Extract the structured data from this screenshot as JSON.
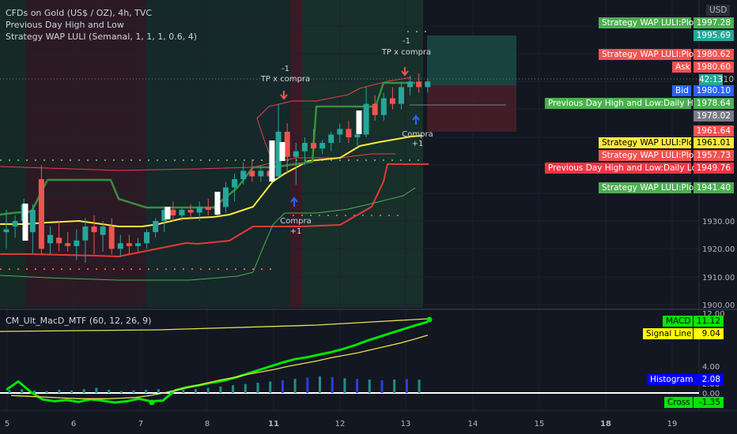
{
  "legend": {
    "symbol": "CFDs on Gold (US$ / OZ), 4h, TVC",
    "study1": "Previous Day High and Low",
    "study2": "Strategy WAP LULI (Semanal, 1, 1, 1, 0.6, 4)",
    "study3": "CM_Ult_MacD_MTF (60, 12, 26, 9)"
  },
  "currency": "USD",
  "labels": [
    {
      "text": "Strategy WAP LULI:Plot",
      "value": "1997.28",
      "bg": "#4caf50",
      "fg": "#ffffff"
    },
    {
      "text": "",
      "value": "1995.69",
      "bg": "#26a69a",
      "fg": "#ffffff"
    },
    {
      "text": "Strategy WAP LULI:Plot",
      "value": "1980.62",
      "bg": "#f05350",
      "fg": "#ffffff"
    },
    {
      "text": "Ask",
      "value": "1980.60",
      "bg": "#f05350",
      "fg": "#ffffff"
    },
    {
      "text": "",
      "value": "1980.10",
      "bg": "",
      "fg": "#b2b5be"
    },
    {
      "text": "",
      "value": "42:13",
      "bg": "#26a69a",
      "fg": "#ffffff"
    },
    {
      "text": "Bid",
      "value": "1980.10",
      "bg": "#2962ff",
      "fg": "#ffffff"
    },
    {
      "text": "Previous Day High and Low:Daily High",
      "value": "1978.64",
      "bg": "#4caf50",
      "fg": "#ffffff"
    },
    {
      "text": "",
      "value": "1978.02",
      "bg": "#787b86",
      "fg": "#ffffff"
    },
    {
      "text": "",
      "value": "1961.64",
      "bg": "#f05350",
      "fg": "#ffffff"
    },
    {
      "text": "Strategy WAP LULI:Plot",
      "value": "1961.01",
      "bg": "#ffeb3b",
      "fg": "#000000"
    },
    {
      "text": "Strategy WAP LULI:Plot",
      "value": "1957.73",
      "bg": "#f05350",
      "fg": "#ffffff"
    },
    {
      "text": "Previous Day High and Low:Daily Low",
      "value": "1949.76",
      "bg": "#f23645",
      "fg": "#ffffff"
    },
    {
      "text": "Strategy WAP LULI:Plot",
      "value": "1941.40",
      "bg": "#4caf50",
      "fg": "#ffffff"
    }
  ],
  "macd_labels": [
    {
      "text": "MACD",
      "value": "11.12",
      "bg": "#00e600",
      "fg": "#000000"
    },
    {
      "text": "Signal Line",
      "value": "9.04",
      "bg": "#ffff00",
      "fg": "#000000"
    },
    {
      "text": "Histogram",
      "value": "2.08",
      "bg": "#0000ff",
      "fg": "#ffffff"
    },
    {
      "text": "Cross",
      "value": "-1.35",
      "bg": "#00e600",
      "fg": "#000000"
    }
  ],
  "annotations": {
    "tp1_label": "TP x compra",
    "tp1_qty": "-1",
    "tp2_label": "TP x compra",
    "tp2_qty": "-1",
    "buy1_label": "Compra",
    "buy1_qty": "+1",
    "buy2_label": "Compra",
    "buy2_qty": "+1"
  },
  "chart_data": {
    "type": "candlestick",
    "title": "CFDs on Gold (US$ / OZ), 4h, TVC",
    "price_axis": {
      "ticks": [
        "1900.00",
        "1910.00",
        "1920.00",
        "1930.00"
      ],
      "ylim": [
        1898,
        2002
      ]
    },
    "time_axis": {
      "ticks": [
        "5",
        "6",
        "7",
        "8",
        "11",
        "12",
        "13",
        "14",
        "15",
        "18",
        "19"
      ]
    },
    "candles": [
      [
        1926,
        1934,
        1920,
        1927
      ],
      [
        1928,
        1932,
        1924,
        1930
      ],
      [
        1930,
        1938,
        1926,
        1936
      ],
      [
        1926,
        1936,
        1918,
        1934
      ],
      [
        1945,
        1950,
        1918,
        1920
      ],
      [
        1922,
        1928,
        1918,
        1925
      ],
      [
        1924,
        1930,
        1919,
        1922
      ],
      [
        1922,
        1926,
        1919,
        1921
      ],
      [
        1921,
        1927,
        1916,
        1923
      ],
      [
        1923,
        1931,
        1915,
        1928
      ],
      [
        1928,
        1932,
        1918,
        1926
      ],
      [
        1925,
        1930,
        1919,
        1928
      ],
      [
        1928,
        1931,
        1918,
        1920
      ],
      [
        1920,
        1925,
        1917,
        1922
      ],
      [
        1922,
        1925,
        1918,
        1921
      ],
      [
        1921,
        1924,
        1919,
        1922
      ],
      [
        1922,
        1927,
        1920,
        1926
      ],
      [
        1926,
        1931,
        1924,
        1930
      ],
      [
        1930,
        1935,
        1926,
        1934
      ],
      [
        1934,
        1937,
        1930,
        1932
      ],
      [
        1932,
        1935,
        1930,
        1934
      ],
      [
        1934,
        1936,
        1931,
        1933
      ],
      [
        1933,
        1937,
        1930,
        1935
      ],
      [
        1935,
        1938,
        1932,
        1934
      ],
      [
        1934,
        1938,
        1932,
        1935
      ],
      [
        1935,
        1944,
        1933,
        1942
      ],
      [
        1942,
        1947,
        1937,
        1945
      ],
      [
        1945,
        1951,
        1943,
        1948
      ],
      [
        1948,
        1952,
        1944,
        1946
      ],
      [
        1946,
        1950,
        1944,
        1948
      ],
      [
        1948,
        1950,
        1944,
        1946
      ],
      [
        1946,
        1972,
        1945,
        1962
      ],
      [
        1962,
        1965,
        1947,
        1953
      ],
      [
        1953,
        1958,
        1943,
        1955
      ],
      [
        1955,
        1960,
        1950,
        1958
      ],
      [
        1958,
        1963,
        1955,
        1956
      ],
      [
        1956,
        1959,
        1954,
        1958
      ],
      [
        1958,
        1962,
        1955,
        1961
      ],
      [
        1961,
        1965,
        1958,
        1963
      ],
      [
        1963,
        1966,
        1958,
        1960
      ],
      [
        1960,
        1963,
        1957,
        1961
      ],
      [
        1961,
        1978,
        1960,
        1972
      ],
      [
        1972,
        1975,
        1966,
        1968
      ],
      [
        1968,
        1976,
        1966,
        1974
      ],
      [
        1974,
        1978,
        1970,
        1972
      ],
      [
        1972,
        1980,
        1970,
        1978
      ],
      [
        1978,
        1982,
        1975,
        1980
      ],
      [
        1980,
        1983,
        1976,
        1978
      ],
      [
        1978,
        1981,
        1976,
        1980
      ]
    ],
    "series": [
      {
        "name": "Strategy WAP LULI:Plot (yellow)",
        "color": "#f7e64a"
      },
      {
        "name": "Strategy WAP LULI:Plot (green)",
        "color": "#4caf50"
      },
      {
        "name": "Previous Day High and Low:Daily High",
        "color": "#4caf50"
      },
      {
        "name": "Previous Day High and Low:Daily Low",
        "color": "#f23645"
      }
    ],
    "macd": {
      "name": "CM_Ult_MacD_MTF (60, 12, 26, 9)",
      "ticks": [
        "12.00",
        "4.00",
        "2.00",
        "0.00"
      ],
      "macd": [
        0.5,
        1.8,
        0.2,
        -1.0,
        -1.3,
        -1.1,
        -1.4,
        -1.0,
        -1.2,
        -1.5,
        -1.3,
        -0.9,
        -1.3,
        -1.2,
        0.4,
        0.9,
        1.2,
        1.6,
        1.9,
        2.4,
        3.0,
        3.6,
        4.2,
        4.8,
        5.3,
        5.6,
        6.0,
        6.4,
        6.9,
        7.5,
        8.2,
        8.8,
        9.4,
        10.0,
        10.6,
        11.12
      ],
      "signal": [
        -0.4,
        -0.5,
        -0.6,
        -0.7,
        -0.8,
        -0.9,
        -0.9,
        -0.9,
        -0.8,
        -0.7,
        -0.4,
        0.0,
        0.5,
        1.0,
        1.5,
        2.0,
        2.4,
        2.9,
        3.3,
        3.7,
        4.2,
        4.6,
        5.0,
        5.5,
        5.9,
        6.3,
        6.8,
        7.3,
        7.8,
        8.4,
        9.04
      ],
      "histogram": [
        0.5,
        0.6,
        0.4,
        0.3,
        0.5,
        0.4,
        0.6,
        0.8,
        0.5,
        0.3,
        0.4,
        0.5,
        0.6,
        0.4,
        0.5,
        0.6,
        0.8,
        1.0,
        1.2,
        1.4,
        1.6,
        1.8,
        2.0,
        2.2,
        2.4,
        2.6,
        2.5,
        2.3,
        2.2,
        2.1,
        2.0,
        2.1,
        2.2,
        2.08
      ]
    }
  }
}
